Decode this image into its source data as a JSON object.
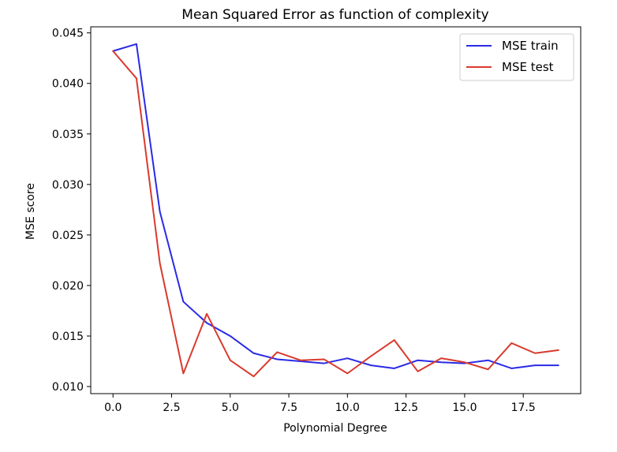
{
  "chart_data": {
    "type": "line",
    "title": "Mean Squared Error as function of complexity",
    "xlabel": "Polynomial Degree",
    "ylabel": "MSE score",
    "xlim": [
      -0.95,
      19.95
    ],
    "ylim": [
      0.0093,
      0.0456
    ],
    "xticks": [
      0,
      2.5,
      5,
      7.5,
      10,
      12.5,
      15,
      17.5
    ],
    "xtick_labels": [
      "0.0",
      "2.5",
      "5.0",
      "7.5",
      "10.0",
      "12.5",
      "15.0",
      "17.5"
    ],
    "yticks": [
      0.01,
      0.015,
      0.02,
      0.025,
      0.03,
      0.035,
      0.04,
      0.045
    ],
    "ytick_labels": [
      "0.010",
      "0.015",
      "0.020",
      "0.025",
      "0.030",
      "0.035",
      "0.040",
      "0.045"
    ],
    "grid": false,
    "legend_position": "top-right",
    "x": [
      0,
      1,
      2,
      3,
      4,
      5,
      6,
      7,
      8,
      9,
      10,
      11,
      12,
      13,
      14,
      15,
      16,
      17,
      18,
      19
    ],
    "series": [
      {
        "name": "MSE train",
        "color": "#2a2ae6",
        "values": [
          0.0432,
          0.0439,
          0.0273,
          0.0184,
          0.0163,
          0.015,
          0.0133,
          0.0127,
          0.0125,
          0.0123,
          0.0128,
          0.0121,
          0.0118,
          0.0126,
          0.0124,
          0.0123,
          0.0126,
          0.0118,
          0.0121,
          0.0121
        ]
      },
      {
        "name": "MSE test",
        "color": "#d93a2e",
        "values": [
          0.0432,
          0.0405,
          0.0222,
          0.0113,
          0.0172,
          0.0126,
          0.011,
          0.0134,
          0.0126,
          0.0127,
          0.0113,
          0.013,
          0.0146,
          0.0115,
          0.0128,
          0.0124,
          0.0117,
          0.0143,
          0.0133,
          0.0136
        ]
      }
    ]
  }
}
